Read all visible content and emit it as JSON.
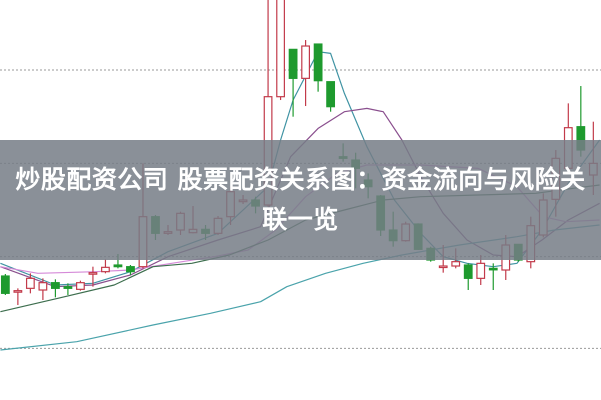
{
  "title": "炒股配资公司 股票配资关系图：资金流向与风险关联一览",
  "chart_data": {
    "type": "candlestick",
    "title": "",
    "xlabel": "",
    "ylabel": "",
    "ylim": [
      0,
      105
    ],
    "grid": "horizontal dotted",
    "gridlines": [
      0.5,
      28,
      56,
      84
    ],
    "colors": {
      "up": "#c23a4a",
      "down": "#1e9a2e",
      "grid": "#9a9a9a",
      "band": "#767d86"
    },
    "candles": [
      [
        22.2,
        22.8,
        16.5,
        17.0
      ],
      [
        17.4,
        18.5,
        13.5,
        17.8
      ],
      [
        18.5,
        23.0,
        17.0,
        21.5
      ],
      [
        18.0,
        21.5,
        15.0,
        20.2
      ],
      [
        20.2,
        21.2,
        15.8,
        18.5
      ],
      [
        19.0,
        20.0,
        16.5,
        18.5
      ],
      [
        18.2,
        20.8,
        17.8,
        20.2
      ],
      [
        22.8,
        25.0,
        19.0,
        23.2
      ],
      [
        23.5,
        27.2,
        23.0,
        24.8
      ],
      [
        25.5,
        28.8,
        24.5,
        25.0
      ],
      [
        25.0,
        25.5,
        22.5,
        23.5
      ],
      [
        25.0,
        56.0,
        24.5,
        40.0
      ],
      [
        40.0,
        40.5,
        33.0,
        35.0
      ],
      [
        35.0,
        37.5,
        34.5,
        35.5
      ],
      [
        36.0,
        41.5,
        34.5,
        41.0
      ],
      [
        35.2,
        43.2,
        35.0,
        36.2
      ],
      [
        36.2,
        37.5,
        33.0,
        35.0
      ],
      [
        35.0,
        40.2,
        34.5,
        39.5
      ],
      [
        40.0,
        49.0,
        37.5,
        47.5
      ],
      [
        44.5,
        46.5,
        43.8,
        45.0
      ],
      [
        45.0,
        46.0,
        41.0,
        43.2
      ],
      [
        43.5,
        112,
        43.0,
        76.0
      ],
      [
        76.0,
        112,
        75.0,
        108
      ],
      [
        90.2,
        90.2,
        70.0,
        81.5
      ],
      [
        81.5,
        93.0,
        73.2,
        91.2
      ],
      [
        91.8,
        91.8,
        77.5,
        80.8
      ],
      [
        80.5,
        80.5,
        71.5,
        73.0
      ],
      [
        58.0,
        62.0,
        56.5,
        57.5
      ],
      [
        57.0,
        59.2,
        48.5,
        54.5
      ],
      [
        51.0,
        53.0,
        45.5,
        49.0
      ],
      [
        46.2,
        46.5,
        34.2,
        36.0
      ],
      [
        36.0,
        41.5,
        31.0,
        32.8
      ],
      [
        32.8,
        38.5,
        32.5,
        37.8
      ],
      [
        37.8,
        38.0,
        30.0,
        30.2
      ],
      [
        30.5,
        31.0,
        26.5,
        27.0
      ],
      [
        25.0,
        31.5,
        23.2,
        25.2
      ],
      [
        25.2,
        30.5,
        24.5,
        26.5
      ],
      [
        25.5,
        26.0,
        18.0,
        21.5
      ],
      [
        21.5,
        28.5,
        19.5,
        26.0
      ],
      [
        24.5,
        26.0,
        18.0,
        24.2
      ],
      [
        24.0,
        34.5,
        21.0,
        31.5
      ],
      [
        31.7,
        31.7,
        26.5,
        27.0
      ],
      [
        26.5,
        40.0,
        24.5,
        37.3
      ],
      [
        34.5,
        47.0,
        33.8,
        45.0
      ],
      [
        45.2,
        60.0,
        40.0,
        57.5
      ],
      [
        54.5,
        74.0,
        54.0,
        66.7
      ],
      [
        67.0,
        79.2,
        58.0,
        60.0
      ],
      [
        52.5,
        68.5,
        46.5,
        56.0
      ]
    ],
    "moving_averages": [
      {
        "color": "#3f93a3",
        "points": [
          [
            -0.4,
            26
          ],
          [
            4,
            19.5
          ],
          [
            7,
            20
          ],
          [
            10,
            23.5
          ],
          [
            13,
            29.5
          ],
          [
            17,
            35
          ],
          [
            21,
            49
          ],
          [
            22,
            63
          ],
          [
            23,
            75
          ],
          [
            25,
            89.5
          ],
          [
            26,
            89
          ],
          [
            27.1,
            77
          ],
          [
            28.9,
            61
          ],
          [
            31.1,
            45
          ],
          [
            33.2,
            35
          ],
          [
            35,
            28
          ],
          [
            36.9,
            26
          ],
          [
            39,
            25
          ],
          [
            40.9,
            26
          ],
          [
            42.9,
            36
          ],
          [
            45,
            50
          ],
          [
            47.5,
            63
          ]
        ]
      },
      {
        "color": "#8a4f8e",
        "points": [
          [
            -0.4,
            25
          ],
          [
            4,
            19
          ],
          [
            7,
            19.5
          ],
          [
            10,
            22.5
          ],
          [
            13,
            28
          ],
          [
            17,
            33
          ],
          [
            20.4,
            37
          ],
          [
            22.8,
            58
          ],
          [
            25,
            66.5
          ],
          [
            27.1,
            71.5
          ],
          [
            28.9,
            72.5
          ],
          [
            30.2,
            71.5
          ],
          [
            31.7,
            63
          ],
          [
            33.2,
            52
          ],
          [
            35,
            41
          ],
          [
            36.9,
            33
          ],
          [
            39,
            28.5
          ],
          [
            40.9,
            28
          ],
          [
            42.9,
            33
          ],
          [
            45,
            39
          ],
          [
            47.5,
            44
          ]
        ]
      },
      {
        "color": "#d58ad8",
        "points": [
          [
            -0.4,
            25
          ],
          [
            2.6,
            23
          ],
          [
            7.2,
            23.5
          ],
          [
            10,
            24
          ],
          [
            13.3,
            26
          ],
          [
            16.7,
            28
          ],
          [
            19.4,
            30
          ],
          [
            21.6,
            36
          ],
          [
            24,
            46
          ],
          [
            26.5,
            53
          ],
          [
            28.9,
            55.5
          ],
          [
            33.2,
            55.5
          ],
          [
            37.8,
            54.5
          ],
          [
            40.9,
            49
          ],
          [
            43,
            40
          ],
          [
            44.8,
            38.5
          ],
          [
            47.5,
            39
          ]
        ]
      },
      {
        "color": "#3d6e4e",
        "points": [
          [
            -0.4,
            11.5
          ],
          [
            4.2,
            15.5
          ],
          [
            8.7,
            19.5
          ],
          [
            11.8,
            25
          ],
          [
            14.9,
            26
          ],
          [
            17.9,
            28.5
          ],
          [
            21,
            33
          ],
          [
            24,
            39
          ],
          [
            27.1,
            42
          ],
          [
            30.2,
            45
          ],
          [
            33.2,
            46
          ],
          [
            37.8,
            46.5
          ],
          [
            42.4,
            47
          ],
          [
            45.4,
            48.5
          ],
          [
            47.5,
            49.5
          ]
        ]
      },
      {
        "color": "#4aa3ab",
        "points": [
          [
            -0.4,
            0
          ],
          [
            5.7,
            2.5
          ],
          [
            11.8,
            7.5
          ],
          [
            16.4,
            11
          ],
          [
            20.4,
            14.5
          ],
          [
            22.5,
            19
          ],
          [
            25.6,
            23
          ],
          [
            28.6,
            26
          ],
          [
            31.7,
            28.5
          ],
          [
            36.3,
            31.5
          ],
          [
            40.9,
            34
          ],
          [
            43.9,
            36
          ],
          [
            47.5,
            37.5
          ]
        ]
      }
    ]
  }
}
